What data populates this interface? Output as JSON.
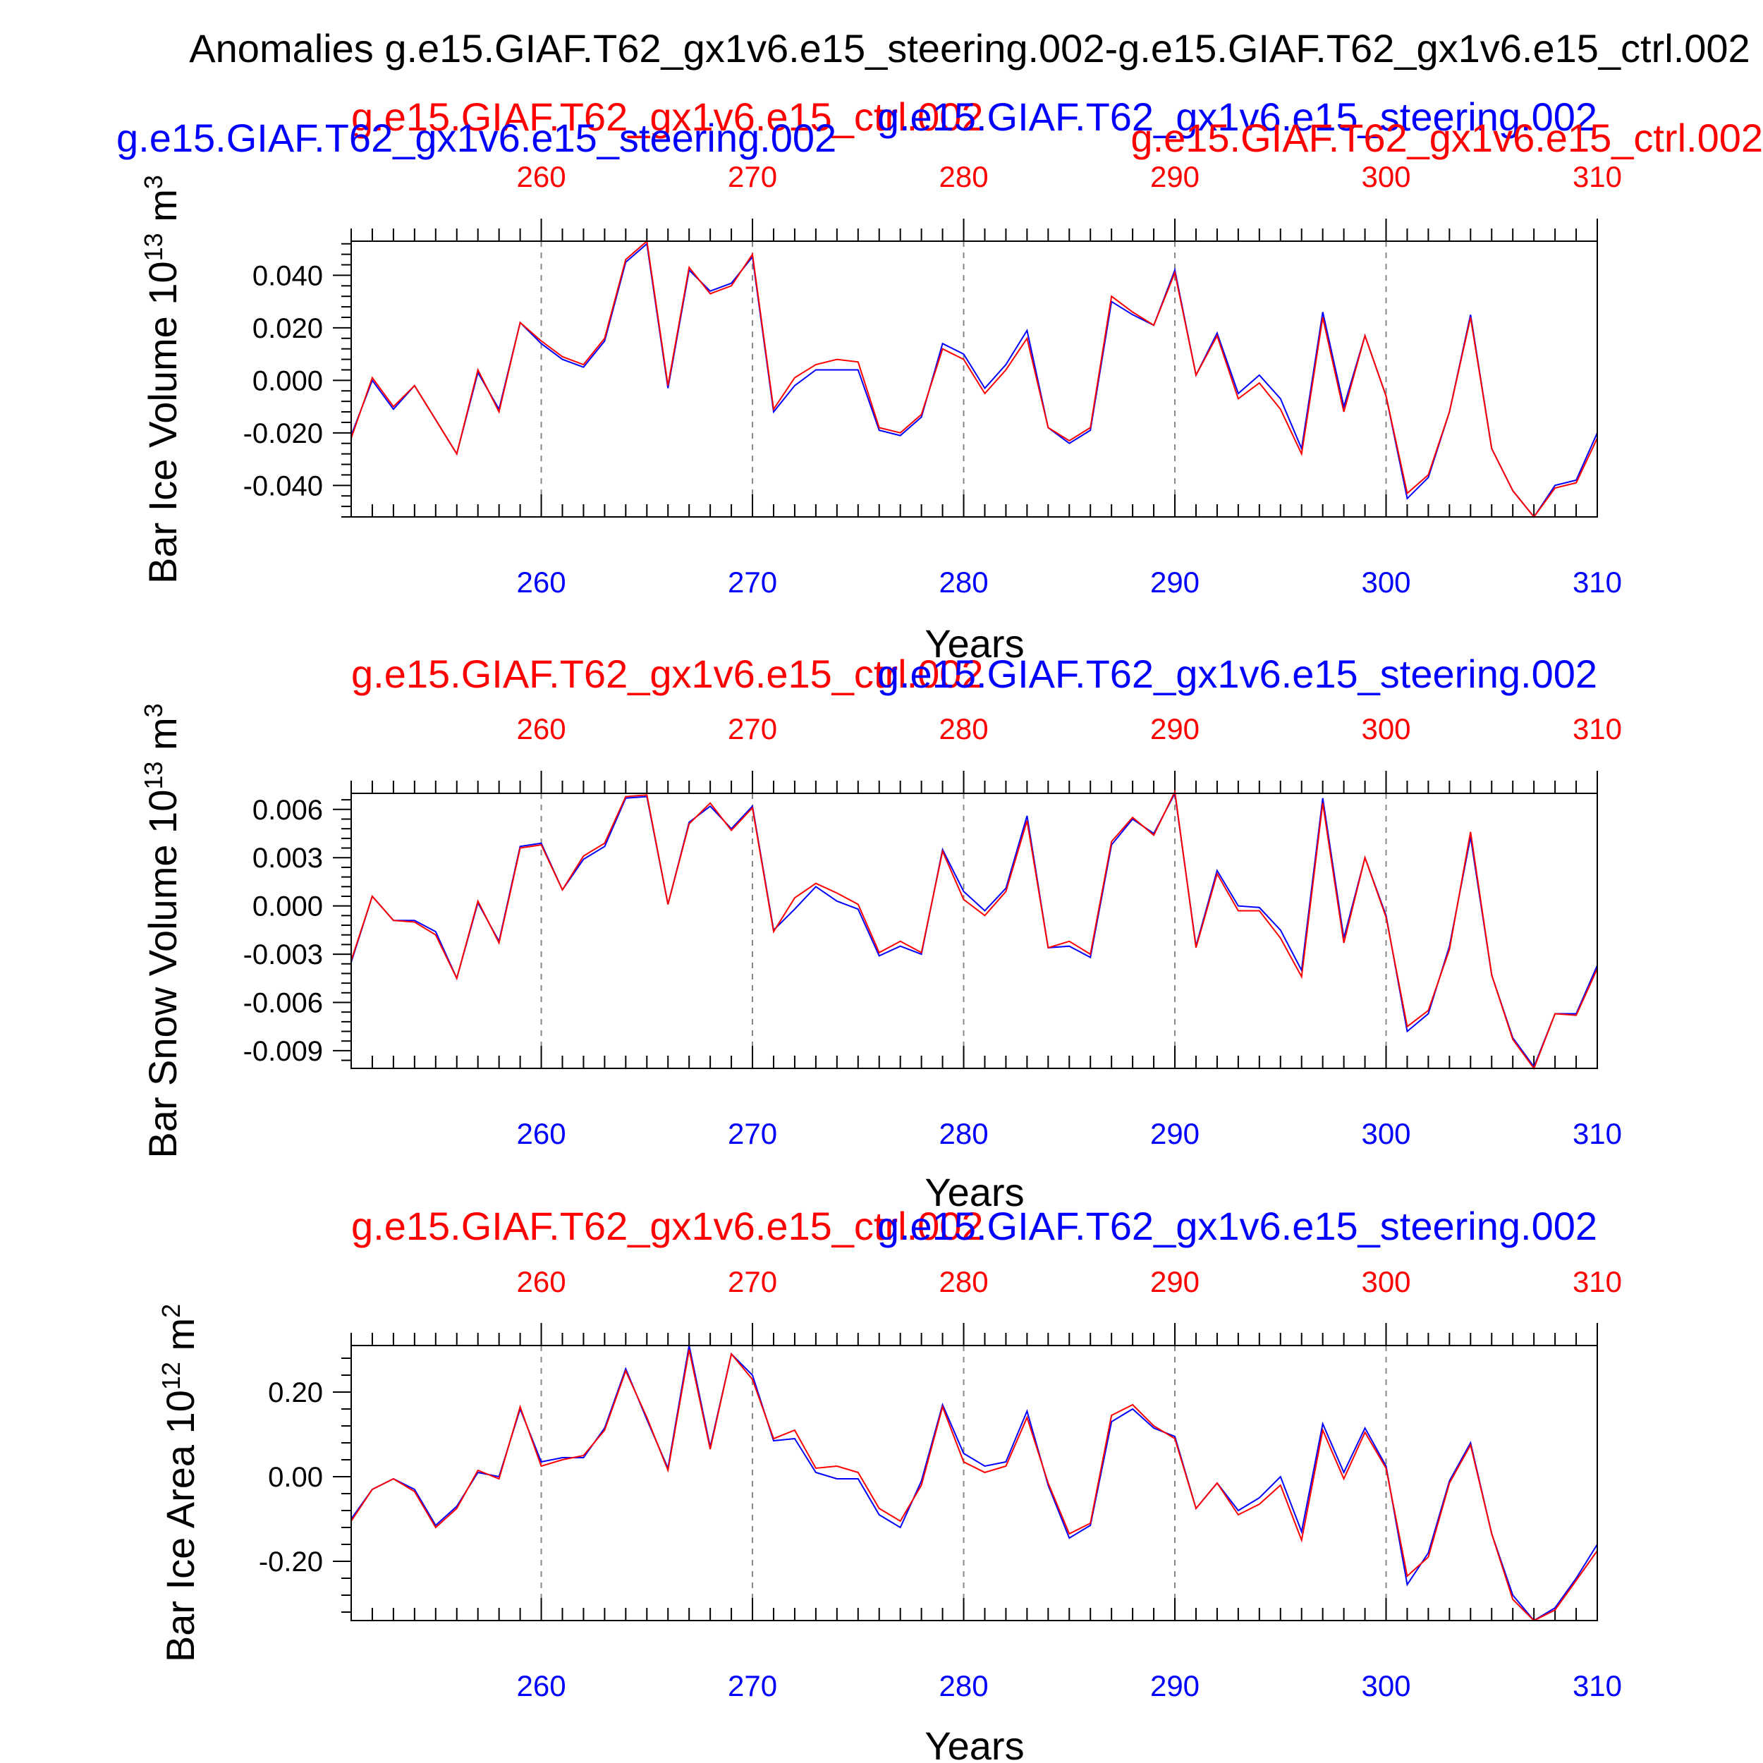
{
  "figure": {
    "title": "Anomalies g.e15.GIAF.T62_gx1v6.e15_steering.002-g.e15.GIAF.T62_gx1v6.e15_ctrl.002",
    "colors": {
      "ctrl": "#ff0000",
      "steering": "#0000ff",
      "frame": "#000000",
      "grid": "#888888"
    }
  },
  "chart_data": [
    {
      "type": "line",
      "ylabel": "Bar Ice Volume 10",
      "ylabel_exp": "13",
      "ylabel_unit": "m",
      "ylabel_unit_exp": "3",
      "xlabel": "Years",
      "xlim": [
        251,
        310
      ],
      "ylim": [
        -0.052,
        0.053
      ],
      "xticks": [
        260,
        270,
        280,
        290,
        300,
        310
      ],
      "xtick_labels": [
        "260",
        "270",
        "280",
        "290",
        "300",
        "310"
      ],
      "yticks": [
        0.04,
        0.02,
        0.0,
        -0.02,
        -0.04
      ],
      "ytick_labels": [
        "0.040",
        "0.020",
        "0.000",
        "-0.020",
        "-0.040"
      ],
      "top_labels": [
        {
          "text": "g.e15.GIAF.T62_gx1v6.e15_ctrl.002",
          "color": "red"
        },
        {
          "text": "g.e15.GIAF.T62_gx1v6.e15_steering.002",
          "color": "blue"
        },
        {
          "text": "g.e15.GIAF.T62_gx1v6.e15_steering.002",
          "color": "blue"
        },
        {
          "text": "g.e15.GIAF.T62_gx1v6.e15_ctrl.002",
          "color": "red"
        }
      ],
      "x": [
        251,
        252,
        253,
        254,
        255,
        256,
        257,
        258,
        259,
        260,
        261,
        262,
        263,
        264,
        265,
        266,
        267,
        268,
        269,
        270,
        271,
        272,
        273,
        274,
        275,
        276,
        277,
        278,
        279,
        280,
        281,
        282,
        283,
        284,
        285,
        286,
        287,
        288,
        289,
        290,
        291,
        292,
        293,
        294,
        295,
        296,
        297,
        298,
        299,
        300,
        301,
        302,
        303,
        304,
        305,
        306,
        307,
        308,
        309,
        310
      ],
      "series": [
        {
          "name": "g.e15.GIAF.T62_gx1v6.e15_steering.002",
          "color": "blue",
          "values": [
            -0.021,
            0.0,
            -0.011,
            -0.002,
            -0.015,
            -0.028,
            0.003,
            -0.011,
            0.022,
            0.014,
            0.008,
            0.005,
            0.015,
            0.045,
            0.052,
            -0.003,
            0.042,
            0.034,
            0.037,
            0.047,
            -0.012,
            -0.002,
            0.004,
            0.004,
            0.004,
            -0.019,
            -0.021,
            -0.014,
            0.014,
            0.01,
            -0.003,
            0.006,
            0.019,
            -0.018,
            -0.024,
            -0.019,
            0.03,
            0.025,
            0.021,
            0.042,
            0.002,
            0.018,
            -0.005,
            0.002,
            -0.007,
            -0.026,
            0.026,
            -0.01,
            0.017,
            -0.006,
            -0.045,
            -0.037,
            -0.012,
            0.025,
            -0.026,
            -0.042,
            -0.052,
            -0.04,
            -0.038,
            -0.02
          ]
        },
        {
          "name": "g.e15.GIAF.T62_gx1v6.e15_ctrl.002",
          "color": "red",
          "values": [
            -0.022,
            0.001,
            -0.01,
            -0.002,
            -0.015,
            -0.028,
            0.004,
            -0.012,
            0.022,
            0.015,
            0.009,
            0.006,
            0.016,
            0.046,
            0.053,
            -0.002,
            0.043,
            0.033,
            0.036,
            0.048,
            -0.011,
            0.001,
            0.006,
            0.008,
            0.007,
            -0.018,
            -0.02,
            -0.013,
            0.012,
            0.008,
            -0.005,
            0.004,
            0.016,
            -0.018,
            -0.023,
            -0.018,
            0.032,
            0.026,
            0.021,
            0.041,
            0.002,
            0.017,
            -0.007,
            -0.001,
            -0.011,
            -0.028,
            0.024,
            -0.012,
            0.017,
            -0.006,
            -0.043,
            -0.036,
            -0.012,
            0.024,
            -0.026,
            -0.042,
            -0.052,
            -0.041,
            -0.039,
            -0.022
          ]
        }
      ]
    },
    {
      "type": "line",
      "ylabel": "Bar Snow Volume 10",
      "ylabel_exp": "13",
      "ylabel_unit": "m",
      "ylabel_unit_exp": "3",
      "xlabel": "Years",
      "xlim": [
        251,
        310
      ],
      "ylim": [
        -0.0101,
        0.007
      ],
      "xticks": [
        260,
        270,
        280,
        290,
        300,
        310
      ],
      "xtick_labels": [
        "260",
        "270",
        "280",
        "290",
        "300",
        "310"
      ],
      "yticks": [
        0.006,
        0.003,
        0.0,
        -0.003,
        -0.006,
        -0.009
      ],
      "ytick_labels": [
        "0.006",
        "0.003",
        "0.000",
        "-0.003",
        "-0.006",
        "-0.009"
      ],
      "top_labels": [
        {
          "text": "g.e15.GIAF.T62_gx1v6.e15_ctrl.002",
          "color": "red"
        },
        {
          "text": "g.e15.GIAF.T62_gx1v6.e15_steering.002",
          "color": "blue"
        }
      ],
      "x": [
        251,
        252,
        253,
        254,
        255,
        256,
        257,
        258,
        259,
        260,
        261,
        262,
        263,
        264,
        265,
        266,
        267,
        268,
        269,
        270,
        271,
        272,
        273,
        274,
        275,
        276,
        277,
        278,
        279,
        280,
        281,
        282,
        283,
        284,
        285,
        286,
        287,
        288,
        289,
        290,
        291,
        292,
        293,
        294,
        295,
        296,
        297,
        298,
        299,
        300,
        301,
        302,
        303,
        304,
        305,
        306,
        307,
        308,
        309,
        310
      ],
      "series": [
        {
          "name": "g.e15.GIAF.T62_gx1v6.e15_steering.002",
          "color": "blue",
          "values": [
            -0.0035,
            0.0006,
            -0.0009,
            -0.0009,
            -0.0016,
            -0.0045,
            0.0002,
            -0.0022,
            0.0037,
            0.0039,
            0.001,
            0.0029,
            0.0037,
            0.0067,
            0.0068,
            0.0001,
            0.0052,
            0.0062,
            0.0048,
            0.0062,
            -0.0015,
            -0.0002,
            0.0012,
            0.0003,
            -0.0002,
            -0.0031,
            -0.0025,
            -0.003,
            0.0035,
            0.0009,
            -0.0003,
            0.0011,
            0.0056,
            -0.0026,
            -0.0025,
            -0.0032,
            0.0038,
            0.0054,
            0.0045,
            0.007,
            -0.0025,
            0.0022,
            0.0,
            -0.0001,
            -0.0015,
            -0.004,
            0.0067,
            -0.002,
            0.003,
            -0.0006,
            -0.0078,
            -0.0067,
            -0.0025,
            0.0043,
            -0.0043,
            -0.0082,
            -0.01,
            -0.0067,
            -0.0067,
            -0.0037
          ]
        },
        {
          "name": "g.e15.GIAF.T62_gx1v6.e15_ctrl.002",
          "color": "red",
          "values": [
            -0.0034,
            0.0006,
            -0.0009,
            -0.001,
            -0.0018,
            -0.0045,
            0.0003,
            -0.0023,
            0.0036,
            0.0038,
            0.001,
            0.0031,
            0.0039,
            0.0068,
            0.0069,
            0.0001,
            0.0051,
            0.0064,
            0.0047,
            0.0061,
            -0.0016,
            0.0005,
            0.0014,
            0.0008,
            0.0001,
            -0.0029,
            -0.0022,
            -0.0029,
            0.0034,
            0.0004,
            -0.0006,
            0.0009,
            0.0053,
            -0.0026,
            -0.0022,
            -0.003,
            0.004,
            0.0055,
            0.0044,
            0.0071,
            -0.0026,
            0.002,
            -0.0003,
            -0.0003,
            -0.002,
            -0.0044,
            0.0064,
            -0.0023,
            0.003,
            -0.0007,
            -0.0075,
            -0.0065,
            -0.0027,
            0.0046,
            -0.0043,
            -0.0083,
            -0.0101,
            -0.0067,
            -0.0068,
            -0.0039
          ]
        }
      ]
    },
    {
      "type": "line",
      "ylabel": "Bar Ice Area 10",
      "ylabel_exp": "12",
      "ylabel_unit": "m",
      "ylabel_unit_exp": "2",
      "xlabel": "Years",
      "xlim": [
        251,
        310
      ],
      "ylim": [
        -0.34,
        0.31
      ],
      "xticks": [
        260,
        270,
        280,
        290,
        300,
        310
      ],
      "xtick_labels": [
        "260",
        "270",
        "280",
        "290",
        "300",
        "310"
      ],
      "yticks": [
        0.2,
        0.0,
        -0.2
      ],
      "ytick_labels": [
        "0.20",
        "0.00",
        "-0.20"
      ],
      "top_labels": [
        {
          "text": "g.e15.GIAF.T62_gx1v6.e15_ctrl.002",
          "color": "red"
        },
        {
          "text": "g.e15.GIAF.T62_gx1v6.e15_steering.002",
          "color": "blue"
        }
      ],
      "x": [
        251,
        252,
        253,
        254,
        255,
        256,
        257,
        258,
        259,
        260,
        261,
        262,
        263,
        264,
        265,
        266,
        267,
        268,
        269,
        270,
        271,
        272,
        273,
        274,
        275,
        276,
        277,
        278,
        279,
        280,
        281,
        282,
        283,
        284,
        285,
        286,
        287,
        288,
        289,
        290,
        291,
        292,
        293,
        294,
        295,
        296,
        297,
        298,
        299,
        300,
        301,
        302,
        303,
        304,
        305,
        306,
        307,
        308,
        309,
        310
      ],
      "series": [
        {
          "name": "g.e15.GIAF.T62_gx1v6.e15_steering.002",
          "color": "blue",
          "values": [
            -0.1,
            -0.03,
            -0.005,
            -0.03,
            -0.115,
            -0.07,
            0.01,
            0.0,
            0.16,
            0.035,
            0.045,
            0.045,
            0.115,
            0.255,
            0.135,
            0.02,
            0.31,
            0.07,
            0.29,
            0.24,
            0.085,
            0.09,
            0.01,
            -0.005,
            -0.005,
            -0.09,
            -0.12,
            -0.01,
            0.17,
            0.055,
            0.025,
            0.035,
            0.155,
            -0.02,
            -0.145,
            -0.115,
            0.13,
            0.16,
            0.115,
            0.095,
            -0.075,
            -0.015,
            -0.08,
            -0.05,
            0.0,
            -0.13,
            0.125,
            0.01,
            0.115,
            0.025,
            -0.255,
            -0.18,
            -0.01,
            0.08,
            -0.135,
            -0.28,
            -0.34,
            -0.31,
            -0.24,
            -0.16
          ]
        },
        {
          "name": "g.e15.GIAF.T62_gx1v6.e15_ctrl.002",
          "color": "red",
          "values": [
            -0.105,
            -0.03,
            -0.005,
            -0.035,
            -0.12,
            -0.075,
            0.015,
            -0.005,
            0.165,
            0.025,
            0.04,
            0.05,
            0.11,
            0.25,
            0.14,
            0.015,
            0.3,
            0.065,
            0.29,
            0.23,
            0.09,
            0.11,
            0.02,
            0.025,
            0.01,
            -0.075,
            -0.105,
            -0.02,
            0.165,
            0.035,
            0.01,
            0.025,
            0.14,
            -0.015,
            -0.135,
            -0.11,
            0.145,
            0.17,
            0.12,
            0.09,
            -0.075,
            -0.015,
            -0.09,
            -0.065,
            -0.02,
            -0.15,
            0.11,
            -0.005,
            0.105,
            0.02,
            -0.235,
            -0.19,
            -0.015,
            0.075,
            -0.135,
            -0.29,
            -0.34,
            -0.315,
            -0.245,
            -0.175
          ]
        }
      ]
    }
  ]
}
